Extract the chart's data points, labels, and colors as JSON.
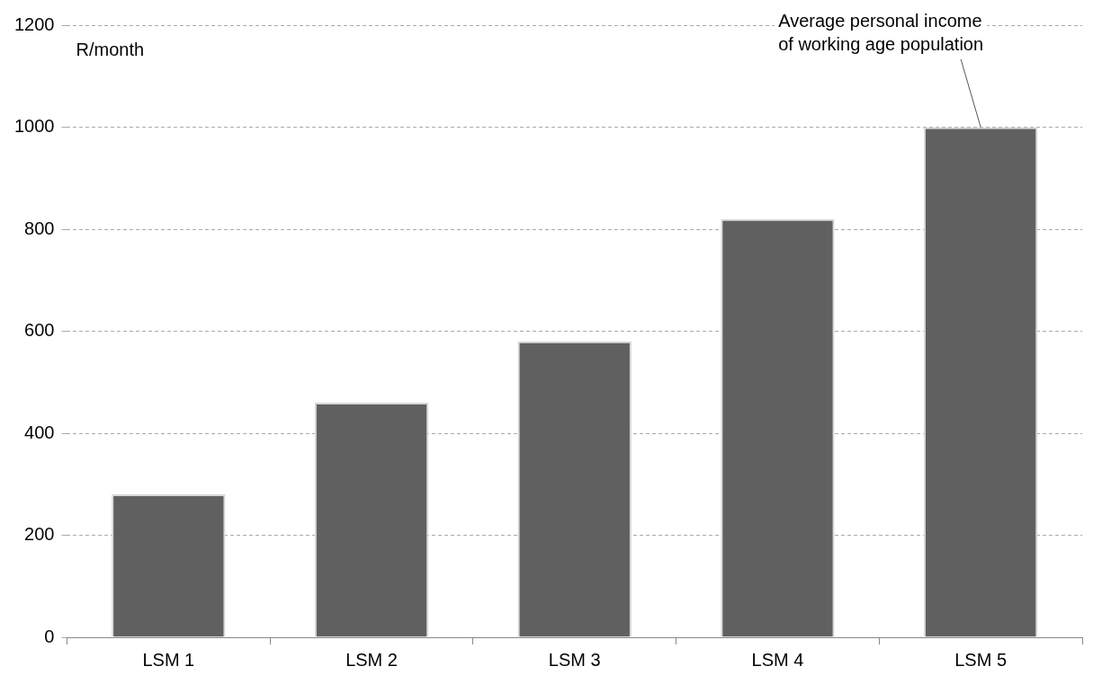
{
  "chart_data": {
    "type": "bar",
    "ylabel": "R/month",
    "categories": [
      "LSM 1",
      "LSM 2",
      "LSM 3",
      "LSM 4",
      "LSM 5"
    ],
    "values": [
      280,
      460,
      580,
      820,
      1000
    ],
    "color": "#606060",
    "ylim": [
      0,
      1200
    ],
    "yticks": [
      0,
      200,
      400,
      600,
      800,
      1000,
      1200
    ],
    "grid": "y",
    "legend": false,
    "annotations": [
      {
        "text": "Average personal income of working age population",
        "x": "LSM 5",
        "y": 1000
      }
    ]
  }
}
